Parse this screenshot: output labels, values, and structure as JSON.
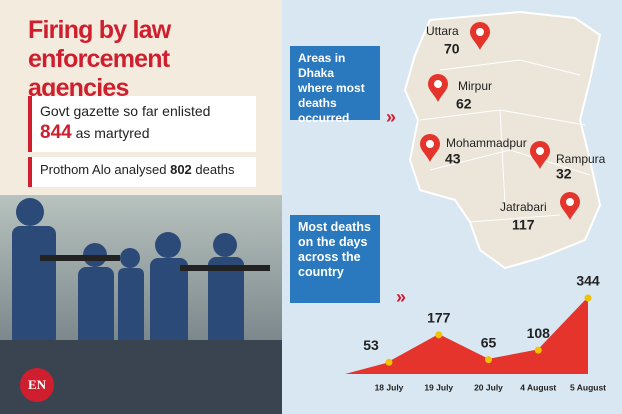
{
  "header": {
    "title": "Firing by law enforcement agencies"
  },
  "stats": {
    "gazette": {
      "before": "Govt gazette so far enlisted",
      "number": 844,
      "after": "as martyred"
    },
    "analysis": {
      "before": "Prothom Alo analysed",
      "number": 802,
      "after": "deaths"
    }
  },
  "logo": "EN",
  "map": {
    "label": "Areas in Dhaka where most deaths occurred",
    "locations": [
      {
        "name": "Uttara",
        "deaths": 70
      },
      {
        "name": "Mirpur",
        "deaths": 62
      },
      {
        "name": "Mohammadpur",
        "deaths": 43
      },
      {
        "name": "Rampura",
        "deaths": 32
      },
      {
        "name": "Jatrabari",
        "deaths": 117
      }
    ]
  },
  "chart_data": {
    "type": "area",
    "title": "Most deaths on the days across the country",
    "categories": [
      "18 July",
      "19 July",
      "20 July",
      "4 August",
      "5 August"
    ],
    "values": [
      53,
      177,
      65,
      108,
      344
    ],
    "color": "#e4342c",
    "point_color": "#f2c200"
  }
}
